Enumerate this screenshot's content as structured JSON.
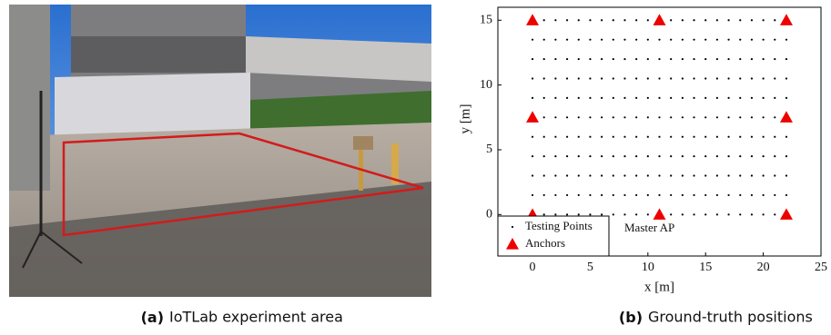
{
  "figure_a": {
    "caption_label": "(a)",
    "caption": "IoTLab experiment area"
  },
  "figure_b": {
    "caption_label": "(b)",
    "caption": "Ground-truth positions"
  },
  "chart_data": {
    "type": "scatter",
    "xlabel": "x [m]",
    "ylabel": "y [m]",
    "xlim": [
      -3,
      25
    ],
    "ylim": [
      -3.2,
      16
    ],
    "xticks": [
      0,
      5,
      10,
      15,
      20,
      25
    ],
    "yticks": [
      0,
      5,
      10,
      15
    ],
    "legend": "lower left",
    "annotations": [
      {
        "text": "Master AP"
      }
    ],
    "series": [
      {
        "name": "Testing Points",
        "color": "#000000",
        "marker": "dot",
        "x": [
          0,
          1,
          2,
          3,
          4,
          5,
          6,
          7,
          8,
          9,
          10,
          11,
          12,
          13,
          14,
          15,
          16,
          17,
          18,
          19,
          20,
          21,
          22,
          0,
          1,
          2,
          3,
          4,
          5,
          6,
          7,
          8,
          9,
          10,
          11,
          12,
          13,
          14,
          15,
          16,
          17,
          18,
          19,
          20,
          21,
          22,
          0,
          1,
          2,
          3,
          4,
          5,
          6,
          7,
          8,
          9,
          10,
          11,
          12,
          13,
          14,
          15,
          16,
          17,
          18,
          19,
          20,
          21,
          22,
          0,
          1,
          2,
          3,
          4,
          5,
          6,
          7,
          8,
          9,
          10,
          11,
          12,
          13,
          14,
          15,
          16,
          17,
          18,
          19,
          20,
          21,
          22,
          0,
          1,
          2,
          3,
          4,
          5,
          6,
          7,
          8,
          9,
          10,
          11,
          12,
          13,
          14,
          15,
          16,
          17,
          18,
          19,
          20,
          21,
          22,
          0,
          1,
          2,
          3,
          4,
          5,
          6,
          7,
          8,
          9,
          10,
          11,
          12,
          13,
          14,
          15,
          16,
          17,
          18,
          19,
          20,
          21,
          22,
          0,
          1,
          2,
          3,
          4,
          5,
          6,
          7,
          8,
          9,
          10,
          11,
          12,
          13,
          14,
          15,
          16,
          17,
          18,
          19,
          20,
          21,
          22,
          0,
          1,
          2,
          3,
          4,
          5,
          6,
          7,
          8,
          9,
          10,
          11,
          12,
          13,
          14,
          15,
          16,
          17,
          18,
          19,
          20,
          21,
          22,
          0,
          1,
          2,
          3,
          4,
          5,
          6,
          7,
          8,
          9,
          10,
          11,
          12,
          13,
          14,
          15,
          16,
          17,
          18,
          19,
          20,
          21,
          22,
          0,
          1,
          2,
          3,
          4,
          5,
          6,
          7,
          8,
          9,
          10,
          11,
          12,
          13,
          14,
          15,
          16,
          17,
          18,
          19,
          20,
          21,
          22,
          0,
          1,
          2,
          3,
          4,
          5,
          6,
          7,
          8,
          9,
          10,
          11,
          12,
          13,
          14,
          15,
          16,
          17,
          18,
          19,
          20,
          21,
          22
        ],
        "y": [
          0,
          0,
          0,
          0,
          0,
          0,
          0,
          0,
          0,
          0,
          0,
          0,
          0,
          0,
          0,
          0,
          0,
          0,
          0,
          0,
          0,
          0,
          0,
          1.5,
          1.5,
          1.5,
          1.5,
          1.5,
          1.5,
          1.5,
          1.5,
          1.5,
          1.5,
          1.5,
          1.5,
          1.5,
          1.5,
          1.5,
          1.5,
          1.5,
          1.5,
          1.5,
          1.5,
          1.5,
          1.5,
          1.5,
          3,
          3,
          3,
          3,
          3,
          3,
          3,
          3,
          3,
          3,
          3,
          3,
          3,
          3,
          3,
          3,
          3,
          3,
          3,
          3,
          3,
          3,
          3,
          4.5,
          4.5,
          4.5,
          4.5,
          4.5,
          4.5,
          4.5,
          4.5,
          4.5,
          4.5,
          4.5,
          4.5,
          4.5,
          4.5,
          4.5,
          4.5,
          4.5,
          4.5,
          4.5,
          4.5,
          4.5,
          4.5,
          4.5,
          6,
          6,
          6,
          6,
          6,
          6,
          6,
          6,
          6,
          6,
          6,
          6,
          6,
          6,
          6,
          6,
          6,
          6,
          6,
          6,
          6,
          6,
          6,
          7.5,
          7.5,
          7.5,
          7.5,
          7.5,
          7.5,
          7.5,
          7.5,
          7.5,
          7.5,
          7.5,
          7.5,
          7.5,
          7.5,
          7.5,
          7.5,
          7.5,
          7.5,
          7.5,
          7.5,
          7.5,
          7.5,
          7.5,
          9,
          9,
          9,
          9,
          9,
          9,
          9,
          9,
          9,
          9,
          9,
          9,
          9,
          9,
          9,
          9,
          9,
          9,
          9,
          9,
          9,
          9,
          9,
          10.5,
          10.5,
          10.5,
          10.5,
          10.5,
          10.5,
          10.5,
          10.5,
          10.5,
          10.5,
          10.5,
          10.5,
          10.5,
          10.5,
          10.5,
          10.5,
          10.5,
          10.5,
          10.5,
          10.5,
          10.5,
          10.5,
          10.5,
          12,
          12,
          12,
          12,
          12,
          12,
          12,
          12,
          12,
          12,
          12,
          12,
          12,
          12,
          12,
          12,
          12,
          12,
          12,
          12,
          12,
          12,
          12,
          13.5,
          13.5,
          13.5,
          13.5,
          13.5,
          13.5,
          13.5,
          13.5,
          13.5,
          13.5,
          13.5,
          13.5,
          13.5,
          13.5,
          13.5,
          13.5,
          13.5,
          13.5,
          13.5,
          13.5,
          13.5,
          13.5,
          13.5,
          15,
          15,
          15,
          15,
          15,
          15,
          15,
          15,
          15,
          15,
          15,
          15,
          15,
          15,
          15,
          15,
          15,
          15,
          15,
          15,
          15,
          15,
          15
        ]
      },
      {
        "name": "Anchors",
        "color": "#ee0000",
        "marker": "triangle",
        "x": [
          0,
          11,
          22,
          0,
          22,
          0,
          11,
          22
        ],
        "y": [
          0,
          0,
          0,
          7.5,
          7.5,
          15,
          15,
          15
        ]
      }
    ]
  }
}
